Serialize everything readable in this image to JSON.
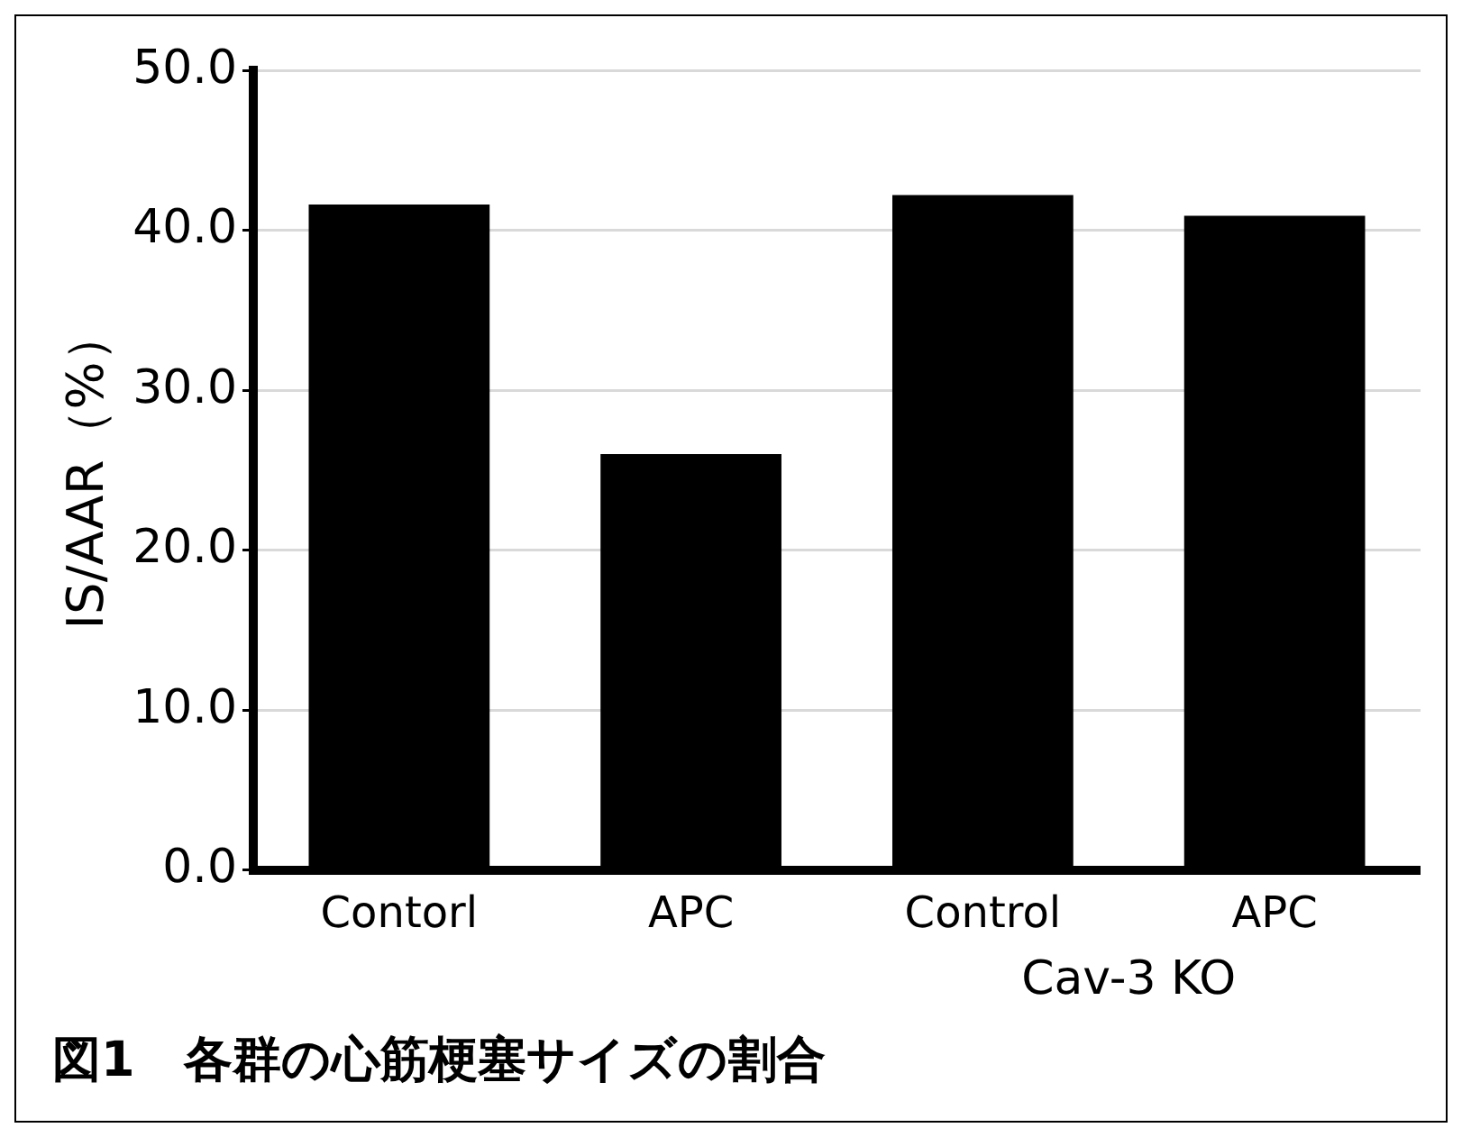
{
  "chart_data": {
    "type": "bar",
    "title": "図1　各群の心筋梗塞サイズの割合",
    "ylabel": "IS/AAR（%）",
    "categories": [
      "Contorl",
      "APC",
      "Control",
      "APC"
    ],
    "values": [
      41.6,
      26.0,
      42.2,
      40.9
    ],
    "color": "#000000",
    "ylim": [
      0,
      50
    ],
    "yticks": [
      {
        "value": 0,
        "label": "0.0"
      },
      {
        "value": 10,
        "label": "10.0"
      },
      {
        "value": 20,
        "label": "20.0"
      },
      {
        "value": 30,
        "label": "30.0"
      },
      {
        "value": 40,
        "label": "40.0"
      },
      {
        "value": 50,
        "label": "50.0"
      }
    ],
    "annotations": [
      "Cav-3 KO"
    ],
    "grid": "y"
  }
}
